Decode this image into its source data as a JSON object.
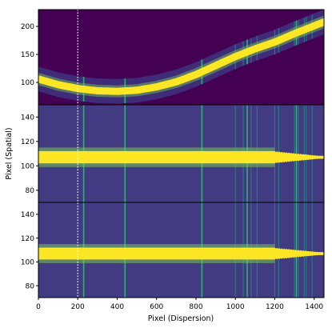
{
  "chart_data": [
    {
      "type": "heatmap",
      "panel": "top",
      "description_of_content": "raw 2D spectrum with curved trace",
      "xlim": [
        0,
        1450
      ],
      "ylim": [
        60,
        230
      ],
      "ytick_labels": [
        "100",
        "150",
        "200"
      ],
      "ytick_values": [
        100,
        150,
        200
      ],
      "trace_center_y_at_x": {
        "x": [
          0,
          100,
          200,
          300,
          400,
          500,
          600,
          700,
          800,
          900,
          1000,
          1100,
          1200,
          1300,
          1400,
          1450
        ],
        "y": [
          106,
          96,
          89,
          85,
          84,
          86,
          92,
          101,
          114,
          130,
          146,
          160,
          172,
          187,
          201,
          208
        ]
      },
      "emission_lines_x": [
        230,
        440,
        830,
        1000,
        1040,
        1060,
        1080,
        1110,
        1200,
        1220,
        1300,
        1310,
        1320,
        1350,
        1360,
        1390
      ]
    },
    {
      "type": "heatmap",
      "panel": "middle",
      "description_of_content": "rectified 2D spectrum",
      "xlim": [
        0,
        1450
      ],
      "ylim": [
        70,
        150
      ],
      "ytick_labels": [
        "80",
        "100",
        "120",
        "140"
      ],
      "ytick_values": [
        80,
        100,
        120,
        140
      ],
      "trace_center_y": 107,
      "emission_lines_x": [
        230,
        440,
        830,
        1000,
        1040,
        1060,
        1080,
        1110,
        1200,
        1220,
        1300,
        1310,
        1320,
        1350,
        1360,
        1390
      ]
    },
    {
      "type": "heatmap",
      "panel": "bottom",
      "description_of_content": "rectified 2D spectrum (alternate)",
      "xlim": [
        0,
        1450
      ],
      "ylim": [
        70,
        150
      ],
      "ytick_labels": [
        "80",
        "100",
        "120",
        "140"
      ],
      "ytick_values": [
        80,
        100,
        120,
        140
      ],
      "trace_center_y": 107,
      "emission_lines_x": [
        230,
        440,
        830,
        1000,
        1040,
        1060,
        1080,
        1110,
        1200,
        1220,
        1300,
        1310,
        1320,
        1350,
        1360,
        1390
      ]
    }
  ],
  "axes": {
    "xlabel": "Pixel (Dispersion)",
    "ylabel": "Pixel (Spatial)",
    "xtick_labels": [
      "0",
      "200",
      "400",
      "600",
      "800",
      "1000",
      "1200",
      "1400"
    ],
    "xtick_values": [
      0,
      200,
      400,
      600,
      800,
      1000,
      1200,
      1400
    ],
    "reference_line_x": 200
  },
  "colors": {
    "background": "#440154",
    "background_band": "#3b2f7a",
    "trace": "#fde725",
    "line_teal": "#21918c",
    "line_green": "#35b779",
    "dotted_line": "#ffffff"
  }
}
